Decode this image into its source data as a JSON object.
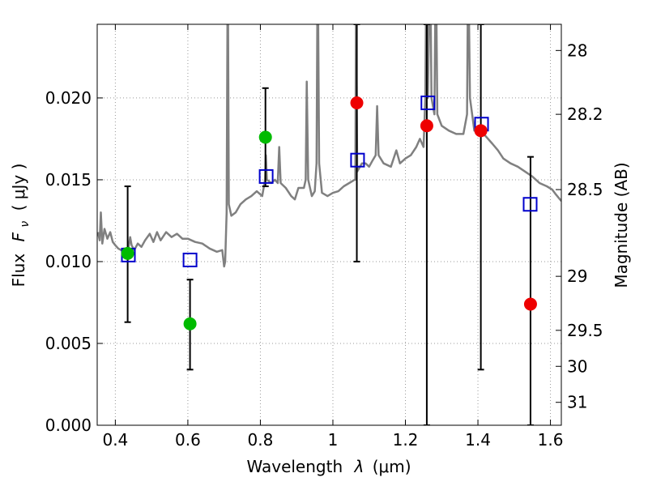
{
  "chart_data": {
    "type": "scatter",
    "xlabel_text": "Wavelength",
    "xlabel_symbol": "λ",
    "xlabel_unit": "(μm)",
    "ylabel_text": "Flux",
    "ylabel_symbol": "F",
    "ylabel_sub": "ν",
    "ylabel_unit": "( μJy )",
    "y2label": "Magnitude (AB)",
    "xlim": [
      0.35,
      1.63
    ],
    "ylim": [
      0.0,
      0.0245
    ],
    "grid": true,
    "x_ticks": [
      0.4,
      0.6,
      0.8,
      1.0,
      1.2,
      1.4,
      1.6
    ],
    "x_tick_labels": [
      "0.4",
      "0.6",
      "0.8",
      "1",
      "1.2",
      "1.4",
      "1.6"
    ],
    "y_ticks": [
      0.0,
      0.005,
      0.01,
      0.015,
      0.02
    ],
    "y_tick_labels": [
      "0.000",
      "0.005",
      "0.010",
      "0.015",
      "0.020"
    ],
    "mag_ticks": [
      {
        "label": "28",
        "flux": 0.0229
      },
      {
        "label": "28.2",
        "flux": 0.019
      },
      {
        "label": "28.5",
        "flux": 0.0144
      },
      {
        "label": "29",
        "flux": 0.0091
      },
      {
        "label": "29.5",
        "flux": 0.0058
      },
      {
        "label": "30",
        "flux": 0.0036
      },
      {
        "label": "31",
        "flux": 0.0014
      }
    ],
    "colors": {
      "model": "#808080",
      "green": "#00bb00",
      "red": "#ee0000",
      "square": "#0000cc",
      "errorbar": "#000000",
      "grid": "#999999"
    },
    "model_spectrum": [
      [
        0.352,
        0.0118
      ],
      [
        0.357,
        0.0113
      ],
      [
        0.36,
        0.013
      ],
      [
        0.364,
        0.0111
      ],
      [
        0.37,
        0.012
      ],
      [
        0.378,
        0.0114
      ],
      [
        0.386,
        0.0118
      ],
      [
        0.393,
        0.0112
      ],
      [
        0.4,
        0.011
      ],
      [
        0.408,
        0.0108
      ],
      [
        0.416,
        0.0107
      ],
      [
        0.424,
        0.0108
      ],
      [
        0.43,
        0.0104
      ],
      [
        0.436,
        0.0108
      ],
      [
        0.441,
        0.0115
      ],
      [
        0.445,
        0.011
      ],
      [
        0.452,
        0.0107
      ],
      [
        0.462,
        0.0111
      ],
      [
        0.472,
        0.0109
      ],
      [
        0.482,
        0.0113
      ],
      [
        0.495,
        0.0117
      ],
      [
        0.505,
        0.0112
      ],
      [
        0.515,
        0.0118
      ],
      [
        0.525,
        0.0113
      ],
      [
        0.54,
        0.0118
      ],
      [
        0.555,
        0.0115
      ],
      [
        0.57,
        0.0117
      ],
      [
        0.585,
        0.0114
      ],
      [
        0.6,
        0.0114
      ],
      [
        0.62,
        0.0112
      ],
      [
        0.64,
        0.0111
      ],
      [
        0.66,
        0.0108
      ],
      [
        0.68,
        0.0106
      ],
      [
        0.695,
        0.0107
      ],
      [
        0.7,
        0.0097
      ],
      [
        0.703,
        0.01
      ],
      [
        0.707,
        0.013
      ],
      [
        0.71,
        0.029
      ],
      [
        0.713,
        0.0135
      ],
      [
        0.72,
        0.0128
      ],
      [
        0.732,
        0.013
      ],
      [
        0.745,
        0.0135
      ],
      [
        0.76,
        0.0138
      ],
      [
        0.775,
        0.014
      ],
      [
        0.79,
        0.0143
      ],
      [
        0.805,
        0.014
      ],
      [
        0.813,
        0.015
      ],
      [
        0.815,
        0.0165
      ],
      [
        0.818,
        0.015
      ],
      [
        0.83,
        0.0148
      ],
      [
        0.84,
        0.015
      ],
      [
        0.848,
        0.0148
      ],
      [
        0.852,
        0.017
      ],
      [
        0.856,
        0.0148
      ],
      [
        0.87,
        0.0145
      ],
      [
        0.885,
        0.014
      ],
      [
        0.895,
        0.0138
      ],
      [
        0.905,
        0.0145
      ],
      [
        0.92,
        0.0145
      ],
      [
        0.925,
        0.015
      ],
      [
        0.928,
        0.021
      ],
      [
        0.932,
        0.015
      ],
      [
        0.942,
        0.014
      ],
      [
        0.95,
        0.0143
      ],
      [
        0.955,
        0.016
      ],
      [
        0.958,
        0.029
      ],
      [
        0.962,
        0.016
      ],
      [
        0.97,
        0.0142
      ],
      [
        0.985,
        0.014
      ],
      [
        1.0,
        0.0142
      ],
      [
        1.015,
        0.0143
      ],
      [
        1.03,
        0.0146
      ],
      [
        1.045,
        0.0148
      ],
      [
        1.06,
        0.015
      ],
      [
        1.062,
        0.015
      ],
      [
        1.064,
        0.026
      ],
      [
        1.067,
        0.0155
      ],
      [
        1.08,
        0.016
      ],
      [
        1.09,
        0.016
      ],
      [
        1.1,
        0.0158
      ],
      [
        1.11,
        0.0162
      ],
      [
        1.118,
        0.0165
      ],
      [
        1.122,
        0.0195
      ],
      [
        1.126,
        0.0165
      ],
      [
        1.14,
        0.016
      ],
      [
        1.16,
        0.0158
      ],
      [
        1.175,
        0.0168
      ],
      [
        1.185,
        0.016
      ],
      [
        1.2,
        0.0163
      ],
      [
        1.215,
        0.0165
      ],
      [
        1.23,
        0.017
      ],
      [
        1.24,
        0.0175
      ],
      [
        1.25,
        0.017
      ],
      [
        1.255,
        0.02
      ],
      [
        1.258,
        0.029
      ],
      [
        1.262,
        0.02
      ],
      [
        1.268,
        0.029
      ],
      [
        1.272,
        0.02
      ],
      [
        1.28,
        0.019
      ],
      [
        1.284,
        0.029
      ],
      [
        1.288,
        0.019
      ],
      [
        1.3,
        0.0183
      ],
      [
        1.32,
        0.018
      ],
      [
        1.34,
        0.0178
      ],
      [
        1.36,
        0.0178
      ],
      [
        1.37,
        0.019
      ],
      [
        1.373,
        0.029
      ],
      [
        1.378,
        0.02
      ],
      [
        1.39,
        0.018
      ],
      [
        1.405,
        0.0179
      ],
      [
        1.42,
        0.0177
      ],
      [
        1.44,
        0.0172
      ],
      [
        1.455,
        0.0168
      ],
      [
        1.47,
        0.0163
      ],
      [
        1.49,
        0.016
      ],
      [
        1.51,
        0.0158
      ],
      [
        1.53,
        0.0155
      ],
      [
        1.55,
        0.0152
      ],
      [
        1.57,
        0.0148
      ],
      [
        1.59,
        0.0146
      ],
      [
        1.605,
        0.0144
      ],
      [
        1.615,
        0.0141
      ],
      [
        1.63,
        0.0137
      ]
    ],
    "green_points": [
      {
        "x": 0.434,
        "y": 0.0105,
        "err_low": 0.0063,
        "err_high": 0.0146
      },
      {
        "x": 0.606,
        "y": 0.0062,
        "err_low": 0.0034,
        "err_high": 0.0089
      },
      {
        "x": 0.814,
        "y": 0.0176,
        "err_low": 0.0146,
        "err_high": 0.0206
      }
    ],
    "red_points": [
      {
        "x": 1.066,
        "y": 0.0197,
        "err_low": 0.01,
        "err_high": 0.0245
      },
      {
        "x": 1.259,
        "y": 0.0183,
        "err_low": 0.0,
        "err_high": 0.0245
      },
      {
        "x": 1.408,
        "y": 0.018,
        "err_low": 0.0034,
        "err_high": 0.0245
      },
      {
        "x": 1.545,
        "y": 0.0074,
        "err_low": 0.0,
        "err_high": 0.0164
      }
    ],
    "model_squares": [
      {
        "x": 0.436,
        "y": 0.0104
      },
      {
        "x": 0.606,
        "y": 0.0101
      },
      {
        "x": 0.816,
        "y": 0.0152
      },
      {
        "x": 1.068,
        "y": 0.0162
      },
      {
        "x": 1.262,
        "y": 0.0197
      },
      {
        "x": 1.41,
        "y": 0.0184
      },
      {
        "x": 1.544,
        "y": 0.0135
      }
    ]
  }
}
